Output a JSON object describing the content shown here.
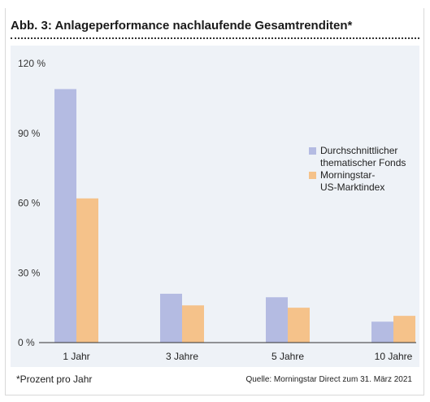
{
  "title": "Abb. 3: Anlageperformance nachlaufende Gesamtrenditen*",
  "footnote": "*Prozent pro Jahr",
  "source": "Quelle: Morningstar Direct zum 31. März 2021",
  "colors": {
    "series1": "#b4bbe2",
    "series2": "#f5c28a",
    "plot_background": "#eef2f7",
    "axis": "#333333"
  },
  "chart_data": {
    "type": "bar",
    "categories": [
      "1 Jahr",
      "3 Jahre",
      "5 Jahre",
      "10 Jahre"
    ],
    "series": [
      {
        "name": "Durchschnittlicher\nthematischer Fonds",
        "values": [
          109,
          21,
          19.5,
          9
        ]
      },
      {
        "name": "Morningstar-\nUS-Marktindex",
        "values": [
          62,
          16,
          15,
          11.5
        ]
      }
    ],
    "yticks": [
      "0 %",
      "30 %",
      "60 %",
      "90 %",
      "120 %"
    ],
    "ytick_values": [
      0,
      30,
      60,
      90,
      120
    ],
    "ylim": [
      0,
      120
    ],
    "xlabel": "",
    "ylabel": "",
    "grid": false,
    "legend_position": "right"
  }
}
